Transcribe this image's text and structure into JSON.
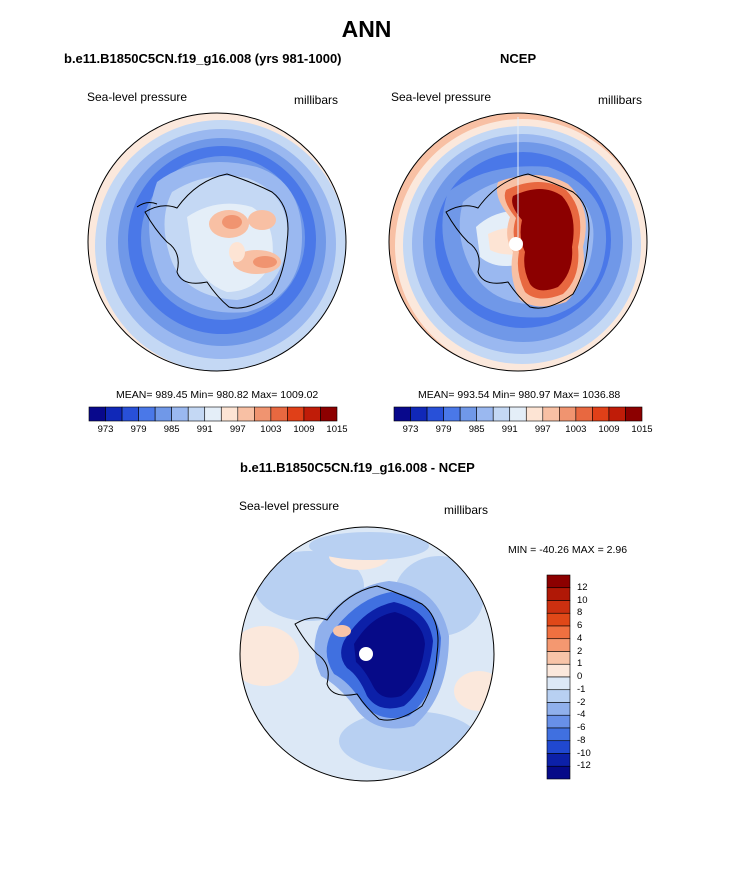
{
  "title": "ANN",
  "colors": {
    "abs_scale": [
      "#08088c",
      "#1028b8",
      "#2850d8",
      "#4a78e8",
      "#7098e8",
      "#9ab8f0",
      "#c4d8f4",
      "#e4eef8",
      "#fde4d4",
      "#f8c0a4",
      "#f09470",
      "#e86840",
      "#e04018",
      "#c01c08",
      "#8c0000"
    ],
    "diff_scale": [
      "#8c0000",
      "#b01806",
      "#cc3010",
      "#e04818",
      "#f07040",
      "#f49870",
      "#f8c4a8",
      "#fbe8dc",
      "#dce8f6",
      "#b8d0f2",
      "#90b0ec",
      "#6890e8",
      "#4070e0",
      "#2048d0",
      "#0c20a8",
      "#060a88"
    ]
  },
  "panel_left": {
    "title": "b.e11.B1850C5CN.f19_g16.008 (yrs 981-1000)",
    "left_label": "Sea-level pressure",
    "right_label": "millibars",
    "stats": "MEAN= 989.45  Min= 980.82  Max= 1009.02"
  },
  "panel_right": {
    "title": "NCEP",
    "left_label": "Sea-level pressure",
    "right_label": "millibars",
    "stats": "MEAN= 993.54  Min= 980.97  Max= 1036.88"
  },
  "panel_diff": {
    "title": "b.e11.B1850C5CN.f19_g16.008 - NCEP",
    "left_label": "Sea-level pressure",
    "right_label": "millibars",
    "stats": "MIN = -40.26 MAX =   2.96"
  },
  "abs_ticks": [
    "973",
    "979",
    "985",
    "991",
    "997",
    "1003",
    "1009",
    "1015"
  ],
  "diff_ticks": [
    "12",
    "10",
    "8",
    "6",
    "4",
    "2",
    "1",
    "0",
    "-1",
    "-2",
    "-4",
    "-6",
    "-8",
    "-10",
    "-12"
  ]
}
